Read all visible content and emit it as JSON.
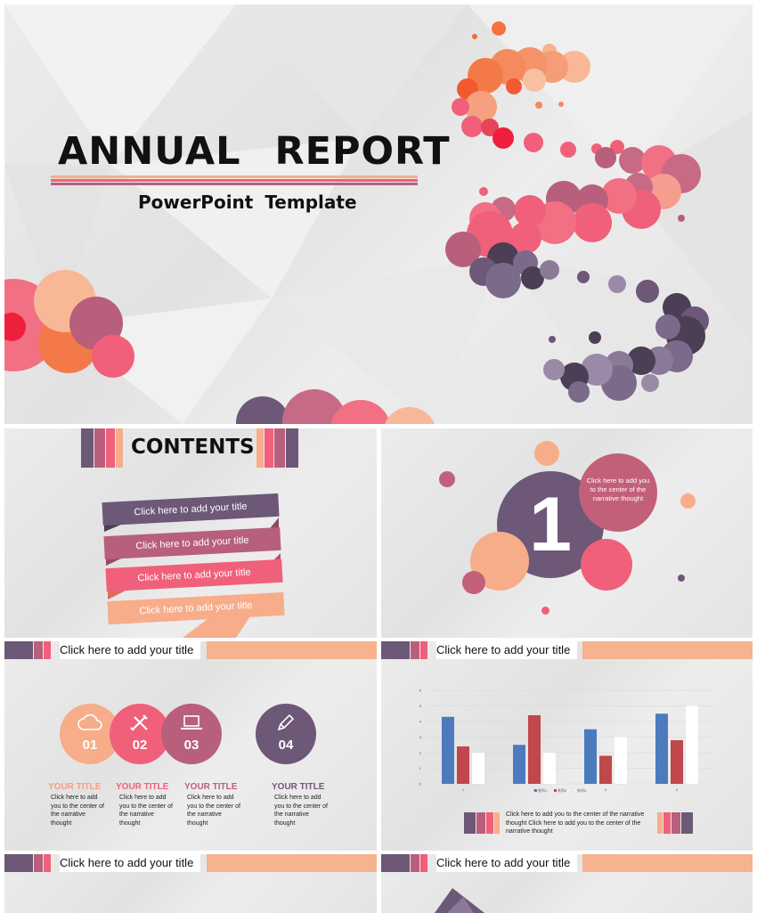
{
  "hero": {
    "title": "ANNUAL REPORT",
    "subtitle": "PowerPoint Template"
  },
  "contents": {
    "title": "CONTENTS",
    "items": [
      "Click here to add your title",
      "Click here to add your title",
      "Click here to add your title",
      "Click here to add your title"
    ]
  },
  "section_one": {
    "number": "1",
    "bubble_text": "Click here to add you to the center of the narrative thought"
  },
  "slide_icons": {
    "header_title": "Click here to add your title",
    "items": [
      {
        "num": "01",
        "icon": "cloud-icon",
        "title": "YOUR  TITLE",
        "desc": "Click here to add you to the center of the narrative thought",
        "color": "#f7ad8a",
        "title_color": "#f4a07e"
      },
      {
        "num": "02",
        "icon": "tools-icon",
        "title": "YOUR  TITLE",
        "desc": "Click here to add you to the center of the narrative thought",
        "color": "#f0607a",
        "title_color": "#f0607a"
      },
      {
        "num": "03",
        "icon": "laptop-icon",
        "title": "YOUR  TITLE",
        "desc": "Click here to add you to the center of the narrative thought",
        "color": "#b85f7c",
        "title_color": "#b85f7c"
      },
      {
        "num": "04",
        "icon": "pen-icon",
        "title": "YOUR  TITLE",
        "desc": "Click here to add you to the center of the narrative thought",
        "color": "#6d5878",
        "title_color": "#6d5878"
      }
    ]
  },
  "slide_chart": {
    "header_title": "Click here to add your title",
    "legend_text": "Click here to add you to the center of the narrative thought  Click here to add you to the center of the narrative thought"
  },
  "chart_data": {
    "type": "bar",
    "categories": [
      "1",
      "2",
      "3",
      "4"
    ],
    "series": [
      {
        "name": "系列1",
        "values": [
          4.3,
          2.5,
          3.5,
          4.5
        ],
        "color": "#4b7bbd"
      },
      {
        "name": "系列2",
        "values": [
          2.4,
          4.4,
          1.8,
          2.8
        ],
        "color": "#c0474b"
      },
      {
        "name": "系列3",
        "values": [
          2.0,
          2.0,
          3.0,
          5.0
        ],
        "color": "#ffffff"
      }
    ],
    "ylim": [
      0,
      6
    ],
    "yticks": [
      0,
      1,
      2,
      3,
      4,
      5,
      6
    ],
    "grid": true,
    "legend": "bottom"
  },
  "slide_bottom_left": {
    "header_title": "Click here to add your title"
  },
  "slide_bottom_right": {
    "header_title": "Click here to add your title"
  }
}
